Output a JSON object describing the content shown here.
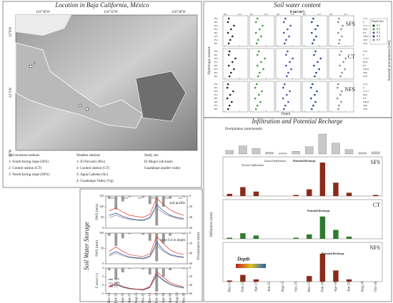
{
  "map": {
    "title": "Location in Baja California, México",
    "longitudes": [
      "116°36'W",
      "116°32'W",
      "116°28'W"
    ],
    "latitudes": [
      "32°9'N",
      "32°3'N",
      "32°N"
    ],
    "station_label": "1",
    "legend": [
      [
        "Soil moisture stations",
        "1- South-facing slope (SFS)",
        "2- Control station (CT)",
        "3- North-facing slope (NFS)"
      ],
      [
        "Weather stations",
        "1- El Porvenir (Por)",
        "2- Control station (CT)",
        "3- Agua Caliente (Ac)",
        "4- Guadalupe Valley (Vg)"
      ],
      [
        "Study site",
        "El Mogor sub-basin",
        "Guadalupe aquifer-valley"
      ]
    ]
  },
  "soil_water_content": {
    "title": "Soil water content",
    "x_label": "θ (m³/m³)",
    "left_label": "Hydrologic seasons",
    "right_label": "Seasonal precipitation (mm)",
    "depth_label": "Depth",
    "legend_title": "Depth (m)",
    "xlim": [
      0,
      0.3
    ],
    "xticks": [
      {
        "value": 0,
        "label": "0.0"
      },
      {
        "value": 0.2,
        "label": "0.2"
      }
    ],
    "depths": [
      {
        "name": "0.1",
        "color": "#222222"
      },
      {
        "name": "0.2",
        "color": "#3a9a3a"
      },
      {
        "name": "0.3",
        "color": "#6a3d9a"
      },
      {
        "name": "0.4",
        "color": "#1f3f8f"
      },
      {
        "name": "0.5",
        "color": "#8a8a8a"
      }
    ],
    "seasons": [
      "TS2",
      "DS",
      "WS",
      "TS1",
      "DS",
      "WS",
      "TS1",
      "DS"
    ],
    "precipitation": [
      13.4,
      9,
      171.2,
      85.6,
      8.3,
      106.8,
      30.6,
      23.8
    ],
    "sites": [
      {
        "name": "SFS",
        "values": [
          [
            0.05,
            0.04,
            0.12,
            0.08,
            0.04,
            0.1,
            0.07,
            0.05
          ],
          [
            0.08,
            0.06,
            0.15,
            0.11,
            0.06,
            0.13,
            0.09,
            0.07
          ],
          [
            0.1,
            0.08,
            0.17,
            0.13,
            0.08,
            0.15,
            0.11,
            0.09
          ],
          [
            0.12,
            0.1,
            0.18,
            0.15,
            0.1,
            0.16,
            0.13,
            0.11
          ],
          [
            0.11,
            0.1,
            0.16,
            0.14,
            0.1,
            0.15,
            0.12,
            0.11
          ]
        ]
      },
      {
        "name": "CT",
        "values": [
          [
            0.06,
            0.05,
            0.14,
            0.1,
            0.05,
            0.12,
            0.08,
            0.06
          ],
          [
            0.1,
            0.08,
            0.18,
            0.13,
            0.08,
            0.16,
            0.11,
            0.09
          ],
          [
            0.13,
            0.11,
            0.2,
            0.16,
            0.11,
            0.18,
            0.14,
            0.12
          ],
          [
            0.15,
            0.13,
            0.22,
            0.18,
            0.13,
            0.2,
            0.16,
            0.14
          ],
          [
            0.14,
            0.12,
            0.2,
            0.17,
            0.12,
            0.19,
            0.15,
            0.13
          ]
        ]
      },
      {
        "name": "NFS",
        "values": [
          [
            0.04,
            0.03,
            0.11,
            0.07,
            0.03,
            0.09,
            0.06,
            0.04
          ],
          [
            0.07,
            0.05,
            0.14,
            0.1,
            0.05,
            0.12,
            0.08,
            0.06
          ],
          [
            0.09,
            0.07,
            0.16,
            0.12,
            0.07,
            0.14,
            0.1,
            0.08
          ],
          [
            0.11,
            0.09,
            0.17,
            0.14,
            0.09,
            0.15,
            0.12,
            0.1
          ],
          [
            0.1,
            0.09,
            0.15,
            0.13,
            0.09,
            0.14,
            0.11,
            0.1
          ]
        ]
      }
    ]
  },
  "infiltration": {
    "title": "Infiltration and Potential Recharge",
    "precip_label": "Precipitation (mm/month)",
    "y_label": "Infiltration (mm)",
    "depth_label": "Depth",
    "categories": [
      "Dec-14",
      "Feb-15",
      "Apr-15",
      "Jun-15",
      "Aug-15",
      "Oct-15",
      "Dec-15",
      "Feb-16",
      "Apr-16",
      "Jun-16",
      "Aug-16",
      "Oct-16"
    ],
    "precipitation": [
      20,
      45,
      30,
      10,
      5,
      15,
      40,
      110,
      60,
      25,
      8,
      12
    ],
    "annotations": [
      "Vertical Infiltration",
      "Lateral Infiltration",
      "Potential Recharge"
    ],
    "sites": [
      {
        "name": "SFS",
        "color": "#8b2a1a",
        "values": [
          2,
          8,
          4,
          0,
          0,
          1,
          6,
          30,
          12,
          3,
          0,
          1
        ]
      },
      {
        "name": "CT",
        "color": "#2f7a2f",
        "values": [
          1,
          5,
          3,
          0,
          0,
          1,
          4,
          20,
          8,
          2,
          0,
          0
        ]
      },
      {
        "name": "NFS",
        "color": "#8b2a1a",
        "values": [
          1,
          6,
          2,
          0,
          0,
          0,
          5,
          25,
          10,
          2,
          0,
          0
        ]
      }
    ]
  },
  "storage": {
    "title": "Soil Water Storage",
    "y2_label": "Precipitation (mm)",
    "y2lim": [
      0,
      60
    ],
    "y2ticks": [
      0,
      20,
      40,
      60
    ],
    "categories": [
      "Dec-14",
      "Feb-15",
      "Apr-15",
      "Jun-15",
      "Aug-15",
      "Oct-15",
      "Dec-15",
      "Feb-16",
      "Apr-16",
      "Jun-16",
      "Aug-16",
      "Oct-16"
    ],
    "seasons": [
      "WS",
      "TS1",
      "DS",
      "WS",
      "TS1",
      "DS"
    ],
    "precipitation": [
      5,
      25,
      10,
      2,
      0,
      3,
      15,
      55,
      20,
      5,
      0,
      2
    ],
    "series_names": [
      {
        "name": "SFS",
        "color": "#1f3f8f"
      },
      {
        "name": "NFS",
        "color": "#888888"
      },
      {
        "name": "CT",
        "color": "#e0302a"
      }
    ],
    "panels": [
      {
        "y_label": "SWS (mm)",
        "note": "soil profile",
        "ylim": [
          0,
          150
        ],
        "yticks": [
          0,
          50,
          100,
          150
        ],
        "values": [
          [
            60,
            70,
            55,
            45,
            40,
            38,
            50,
            110,
            80,
            60,
            50,
            45
          ],
          [
            50,
            60,
            48,
            40,
            36,
            34,
            45,
            95,
            70,
            55,
            45,
            40
          ],
          [
            80,
            95,
            75,
            60,
            55,
            50,
            65,
            140,
            110,
            85,
            70,
            60
          ]
        ]
      },
      {
        "y_label": "SWS (mm)",
        "note": "up to 0.4 m depth",
        "ylim": [
          0,
          100
        ],
        "yticks": [
          0,
          50,
          100
        ],
        "values": [
          [
            30,
            40,
            30,
            22,
            20,
            18,
            25,
            70,
            45,
            30,
            25,
            22
          ],
          [
            25,
            35,
            26,
            20,
            18,
            16,
            22,
            60,
            40,
            28,
            22,
            20
          ],
          [
            40,
            55,
            40,
            30,
            26,
            24,
            32,
            90,
            65,
            45,
            35,
            30
          ]
        ]
      },
      {
        "y_label": "Z score (-)",
        "note": "",
        "ylim": [
          -2,
          4
        ],
        "yticks": [
          -2,
          0,
          2,
          4
        ],
        "values": [
          [
            -0.3,
            0.2,
            -0.4,
            -0.8,
            -1,
            -1.1,
            -0.5,
            2.6,
            1.2,
            0.2,
            -0.3,
            -0.6
          ],
          [
            -0.4,
            0.1,
            -0.5,
            -0.9,
            -1,
            -1.2,
            -0.6,
            2.3,
            1,
            0.1,
            -0.4,
            -0.7
          ],
          [
            -0.2,
            0.5,
            -0.3,
            -0.7,
            -0.9,
            -1,
            -0.3,
            3.2,
            1.8,
            0.6,
            0,
            -0.4
          ]
        ]
      }
    ]
  }
}
